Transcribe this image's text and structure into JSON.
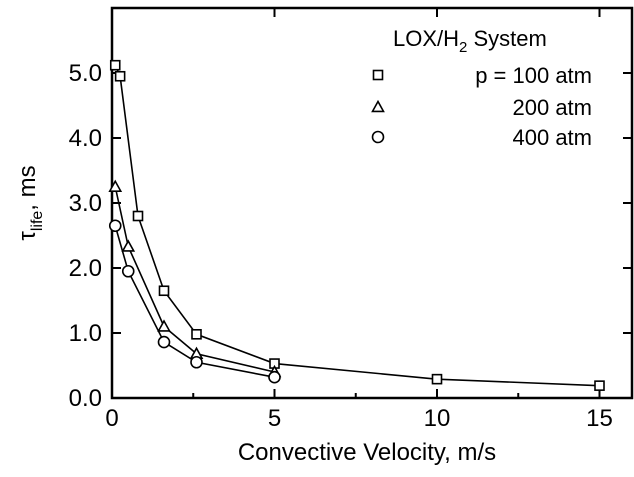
{
  "chart_data": {
    "type": "line",
    "title": "",
    "xlabel": "Convective Velocity, m/s",
    "ylabel": {
      "main": "τ",
      "sub": "life",
      "unit": ", ms"
    },
    "xlim": [
      0,
      16
    ],
    "ylim": [
      0,
      6
    ],
    "x_ticks": [
      0,
      5,
      10,
      15
    ],
    "x_tick_labels": [
      "0",
      "5",
      "10",
      "15"
    ],
    "y_ticks": [
      0,
      1,
      2,
      3,
      4,
      5
    ],
    "y_tick_labels": [
      "0.0",
      "1.0",
      "2.0",
      "3.0",
      "4.0",
      "5.0"
    ],
    "grid": false,
    "legend": {
      "placement": "top-right",
      "title_main": "LOX/H",
      "title_sub": "2",
      "title_rest": " System",
      "entries": [
        "p = 100 atm",
        "200 atm",
        "400 atm"
      ]
    },
    "series": [
      {
        "name": "p = 100 atm",
        "marker": "square",
        "x": [
          0.1,
          0.25,
          0.8,
          1.6,
          2.6,
          5,
          10,
          15
        ],
        "y": [
          5.12,
          4.95,
          2.8,
          1.65,
          0.98,
          0.53,
          0.29,
          0.19
        ]
      },
      {
        "name": "200 atm",
        "marker": "triangle",
        "x": [
          0.1,
          0.5,
          1.6,
          2.6,
          5
        ],
        "y": [
          3.25,
          2.33,
          1.1,
          0.68,
          0.4
        ]
      },
      {
        "name": "400 atm",
        "marker": "circle",
        "x": [
          0.1,
          0.5,
          1.6,
          2.6,
          5
        ],
        "y": [
          2.65,
          1.95,
          0.86,
          0.55,
          0.32
        ]
      }
    ]
  }
}
